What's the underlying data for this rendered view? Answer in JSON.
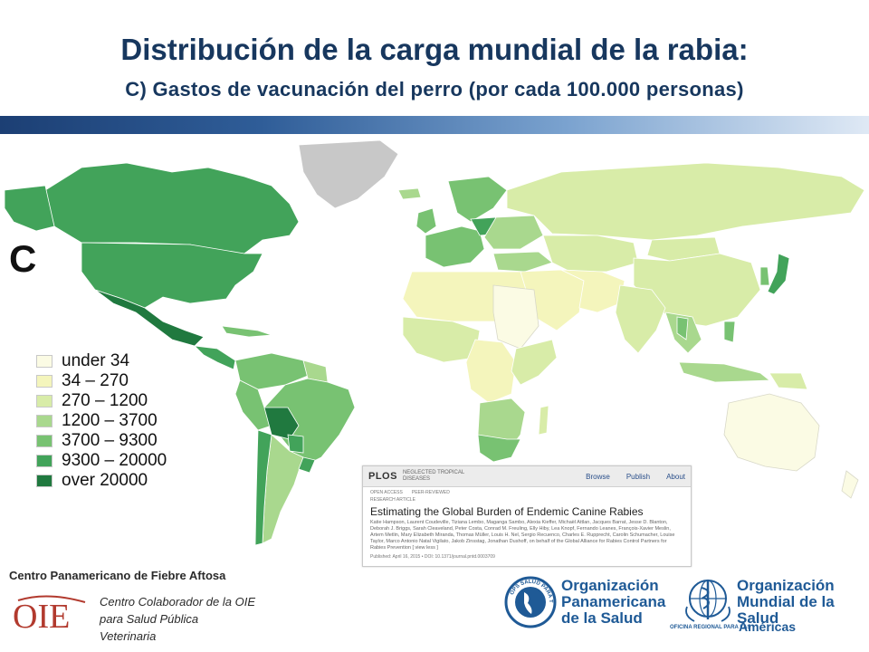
{
  "title": "Distribución de la carga mundial de la rabia:",
  "subtitle": "C) Gastos de vacunación del perro (por cada 100.000 personas)",
  "panel_letter": "C",
  "legend": [
    {
      "label": "under 34",
      "color": "#fbfbe4"
    },
    {
      "label": "34 – 270",
      "color": "#f4f5bc"
    },
    {
      "label": "270 – 1200",
      "color": "#d8eca8"
    },
    {
      "label": "1200 – 3700",
      "color": "#a9d88e"
    },
    {
      "label": "3700 – 9300",
      "color": "#78c272"
    },
    {
      "label": "9300 – 20000",
      "color": "#42a35a"
    },
    {
      "label": "over 20000",
      "color": "#20793f"
    }
  ],
  "plos_card": {
    "logo": "PLOS",
    "journal": "NEGLECTED TROPICAL DISEASES",
    "nav": [
      "Browse",
      "Publish",
      "About"
    ],
    "badges": [
      "OPEN ACCESS",
      "PEER-REVIEWED"
    ],
    "article_type": "RESEARCH ARTICLE",
    "headline": "Estimating the Global Burden of Endemic Canine Rabies",
    "authors": "Katie Hampson, Laurent Coudeville, Tiziana Lembo, Maganga Sambo, Alexia Kieffer, Michaël Attlan, Jacques Barrat, Jesse D. Blanton, Deborah J. Briggs, Sarah Cleaveland, Peter Costa, Conrad M. Freuling, Elly Hiby, Lea Knopf, Fernando Leanes, François-Xavier Meslin, Artem Metlin, Mary Elizabeth Miranda, Thomas Müller, Louis H. Nel, Sergio Recuenco, Charles E. Rupprecht, Carolin Schumacher, Louise Taylor, Marco Antonio Natal Vigilato, Jakob Zinsstag, Jonathan Dushoff, on behalf of the Global Alliance for Rabies Control Partners for Rabies Prevention [ view less ]",
    "published": "Published: April 16, 2015 • DOI: 10.1371/journal.pntd.0003709"
  },
  "footer": {
    "cpfa": "Centro Panamericano de Fiebre Aftosa",
    "oie_logo_text": "OIE",
    "oie_lines": [
      "Centro Colaborador de la OIE",
      "para Salud Pública",
      "Veterinaria"
    ],
    "ops_lines": [
      "Organización",
      "Panamericana",
      "de la Salud"
    ],
    "ops_seal_text": "OPS SALUD PARA TODOS",
    "who_lines": [
      "Organización",
      "Mundial de la Salud"
    ],
    "who_region": "OFICINA REGIONAL PARA LAS",
    "who_americas": "Américas"
  },
  "colors": {
    "title": "#17375e",
    "no_data": "#c8c8c8",
    "ocean": "#ffffff"
  }
}
